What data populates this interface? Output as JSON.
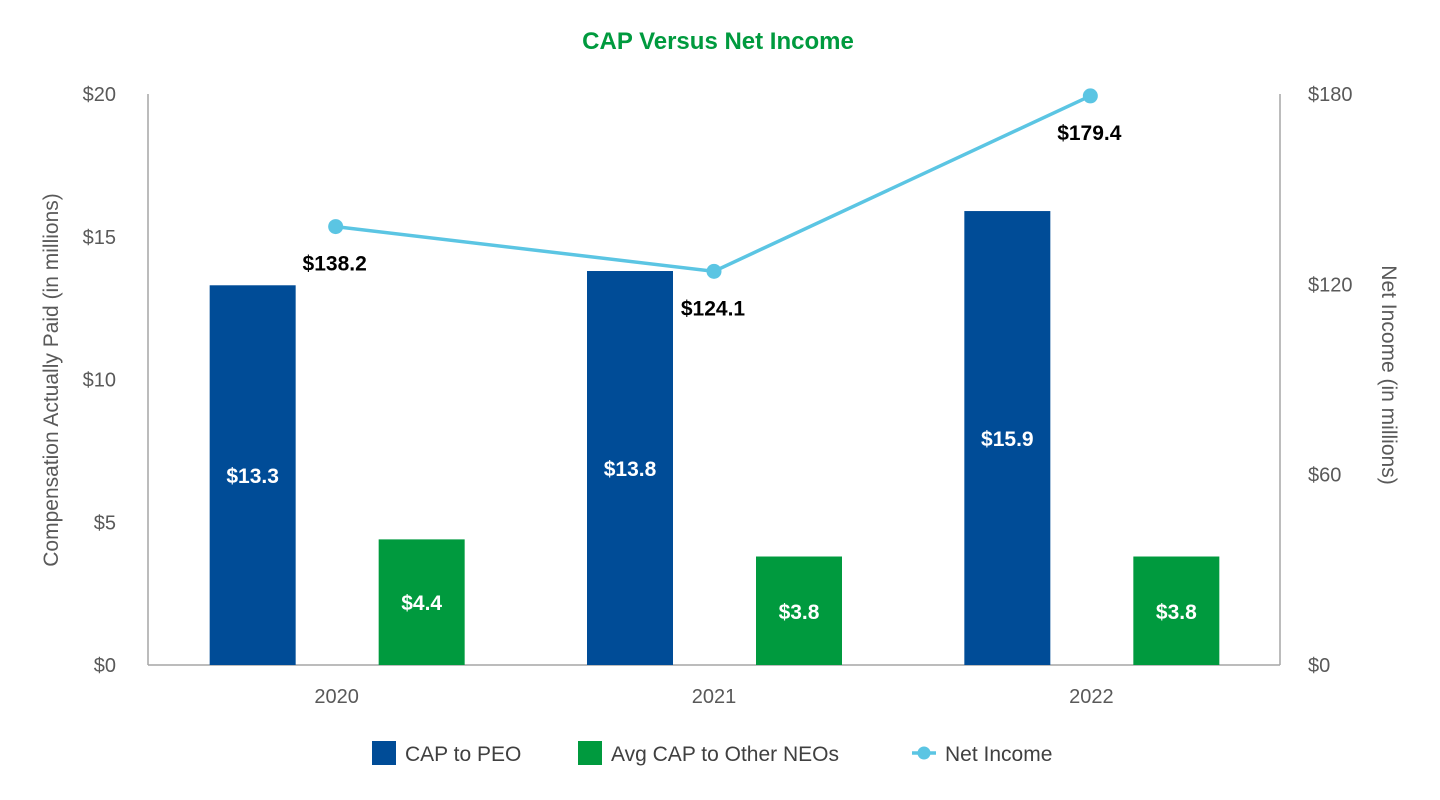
{
  "chart_data": {
    "type": "bar",
    "title": "CAP Versus Net Income",
    "categories": [
      "2020",
      "2021",
      "2022"
    ],
    "ylabel": "Compensation Actually Paid (in millions)",
    "ylim": [
      0,
      20
    ],
    "yticks": [
      0,
      5,
      10,
      15,
      20
    ],
    "ytick_labels": [
      "$0",
      "$5",
      "$10",
      "$15",
      "$20"
    ],
    "y2label": "Net Income (in millions)",
    "y2lim": [
      0,
      180
    ],
    "y2ticks": [
      0,
      60,
      120,
      180
    ],
    "y2tick_labels": [
      "$0",
      "$60",
      "$120",
      "$180"
    ],
    "series": [
      {
        "name": "CAP to PEO",
        "type": "bar",
        "axis": "left",
        "color": "#004C97",
        "values": [
          13.3,
          13.8,
          15.9
        ],
        "labels": [
          "$13.3",
          "$13.8",
          "$15.9"
        ]
      },
      {
        "name": "Avg CAP to Other NEOs",
        "type": "bar",
        "axis": "left",
        "color": "#009A3E",
        "values": [
          4.4,
          3.8,
          3.8
        ],
        "labels": [
          "$4.4",
          "$3.8",
          "$3.8"
        ]
      },
      {
        "name": "Net Income",
        "type": "line",
        "axis": "right",
        "color": "#5BC5E3",
        "values": [
          138.2,
          124.1,
          179.4
        ],
        "labels": [
          "$138.2",
          "$124.1",
          "$179.4"
        ]
      }
    ],
    "legend": "bottom",
    "grid": false
  },
  "colors": {
    "title": "#009A3E",
    "axis": "#A6A6A6"
  }
}
